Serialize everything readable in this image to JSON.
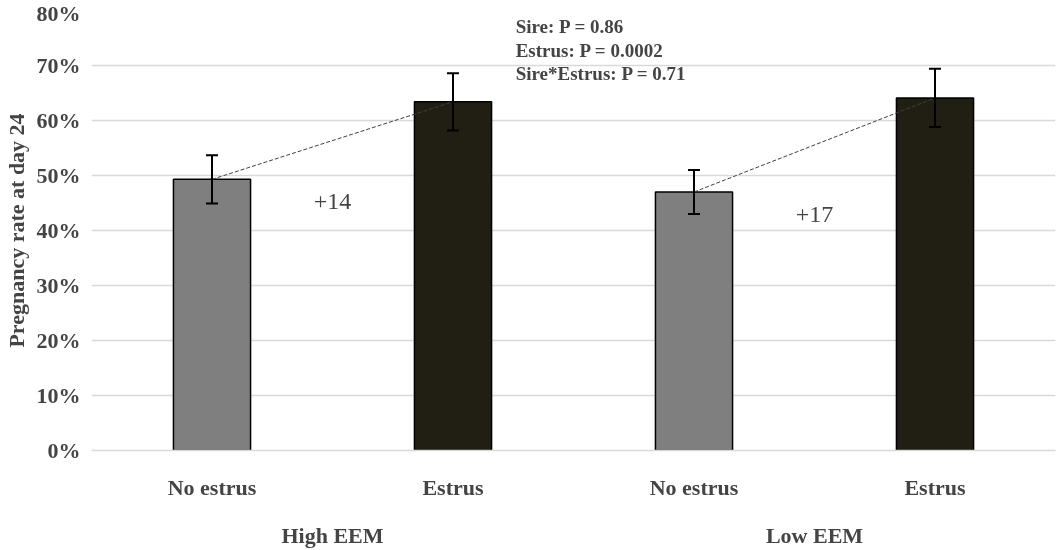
{
  "chart_data": {
    "type": "bar",
    "ylabel": "Pregnancy rate at day 24",
    "categories": [
      "No estrus",
      "Estrus",
      "No estrus",
      "Estrus"
    ],
    "series": [
      {
        "values": [
          49.3,
          63.4,
          47.0,
          64.1
        ],
        "colors": [
          "#7f7f7f",
          "#211e13",
          "#7f7f7f",
          "#211e13"
        ],
        "errors": [
          4.4,
          5.2,
          4.0,
          5.3
        ]
      },
      {
        "type": "line",
        "color": "#404040",
        "line_style": "dashed",
        "values": [
          49.3,
          63.4,
          null,
          null
        ]
      },
      {
        "type": "line",
        "color": "#404040",
        "line_style": "dashed",
        "values": [
          null,
          null,
          47.0,
          64.1
        ]
      }
    ],
    "annotations": [
      "Sire: P = 0.86",
      "Estrus: P = 0.0002",
      "Sire*Estrus: P = 0.71",
      "+14",
      "+17",
      "High EEM",
      "Low EEM"
    ],
    "ylim": [
      0,
      80
    ],
    "yticks": [
      {
        "value": 0,
        "label": "0%"
      },
      {
        "value": 10,
        "label": "10%"
      },
      {
        "value": 20,
        "label": "20%"
      },
      {
        "value": 30,
        "label": "30%"
      },
      {
        "value": 40,
        "label": "40%"
      },
      {
        "value": 50,
        "label": "50%"
      },
      {
        "value": 60,
        "label": "60%"
      },
      {
        "value": 70,
        "label": "70%"
      },
      {
        "value": 80,
        "label": "80%"
      }
    ],
    "grid": "y"
  }
}
